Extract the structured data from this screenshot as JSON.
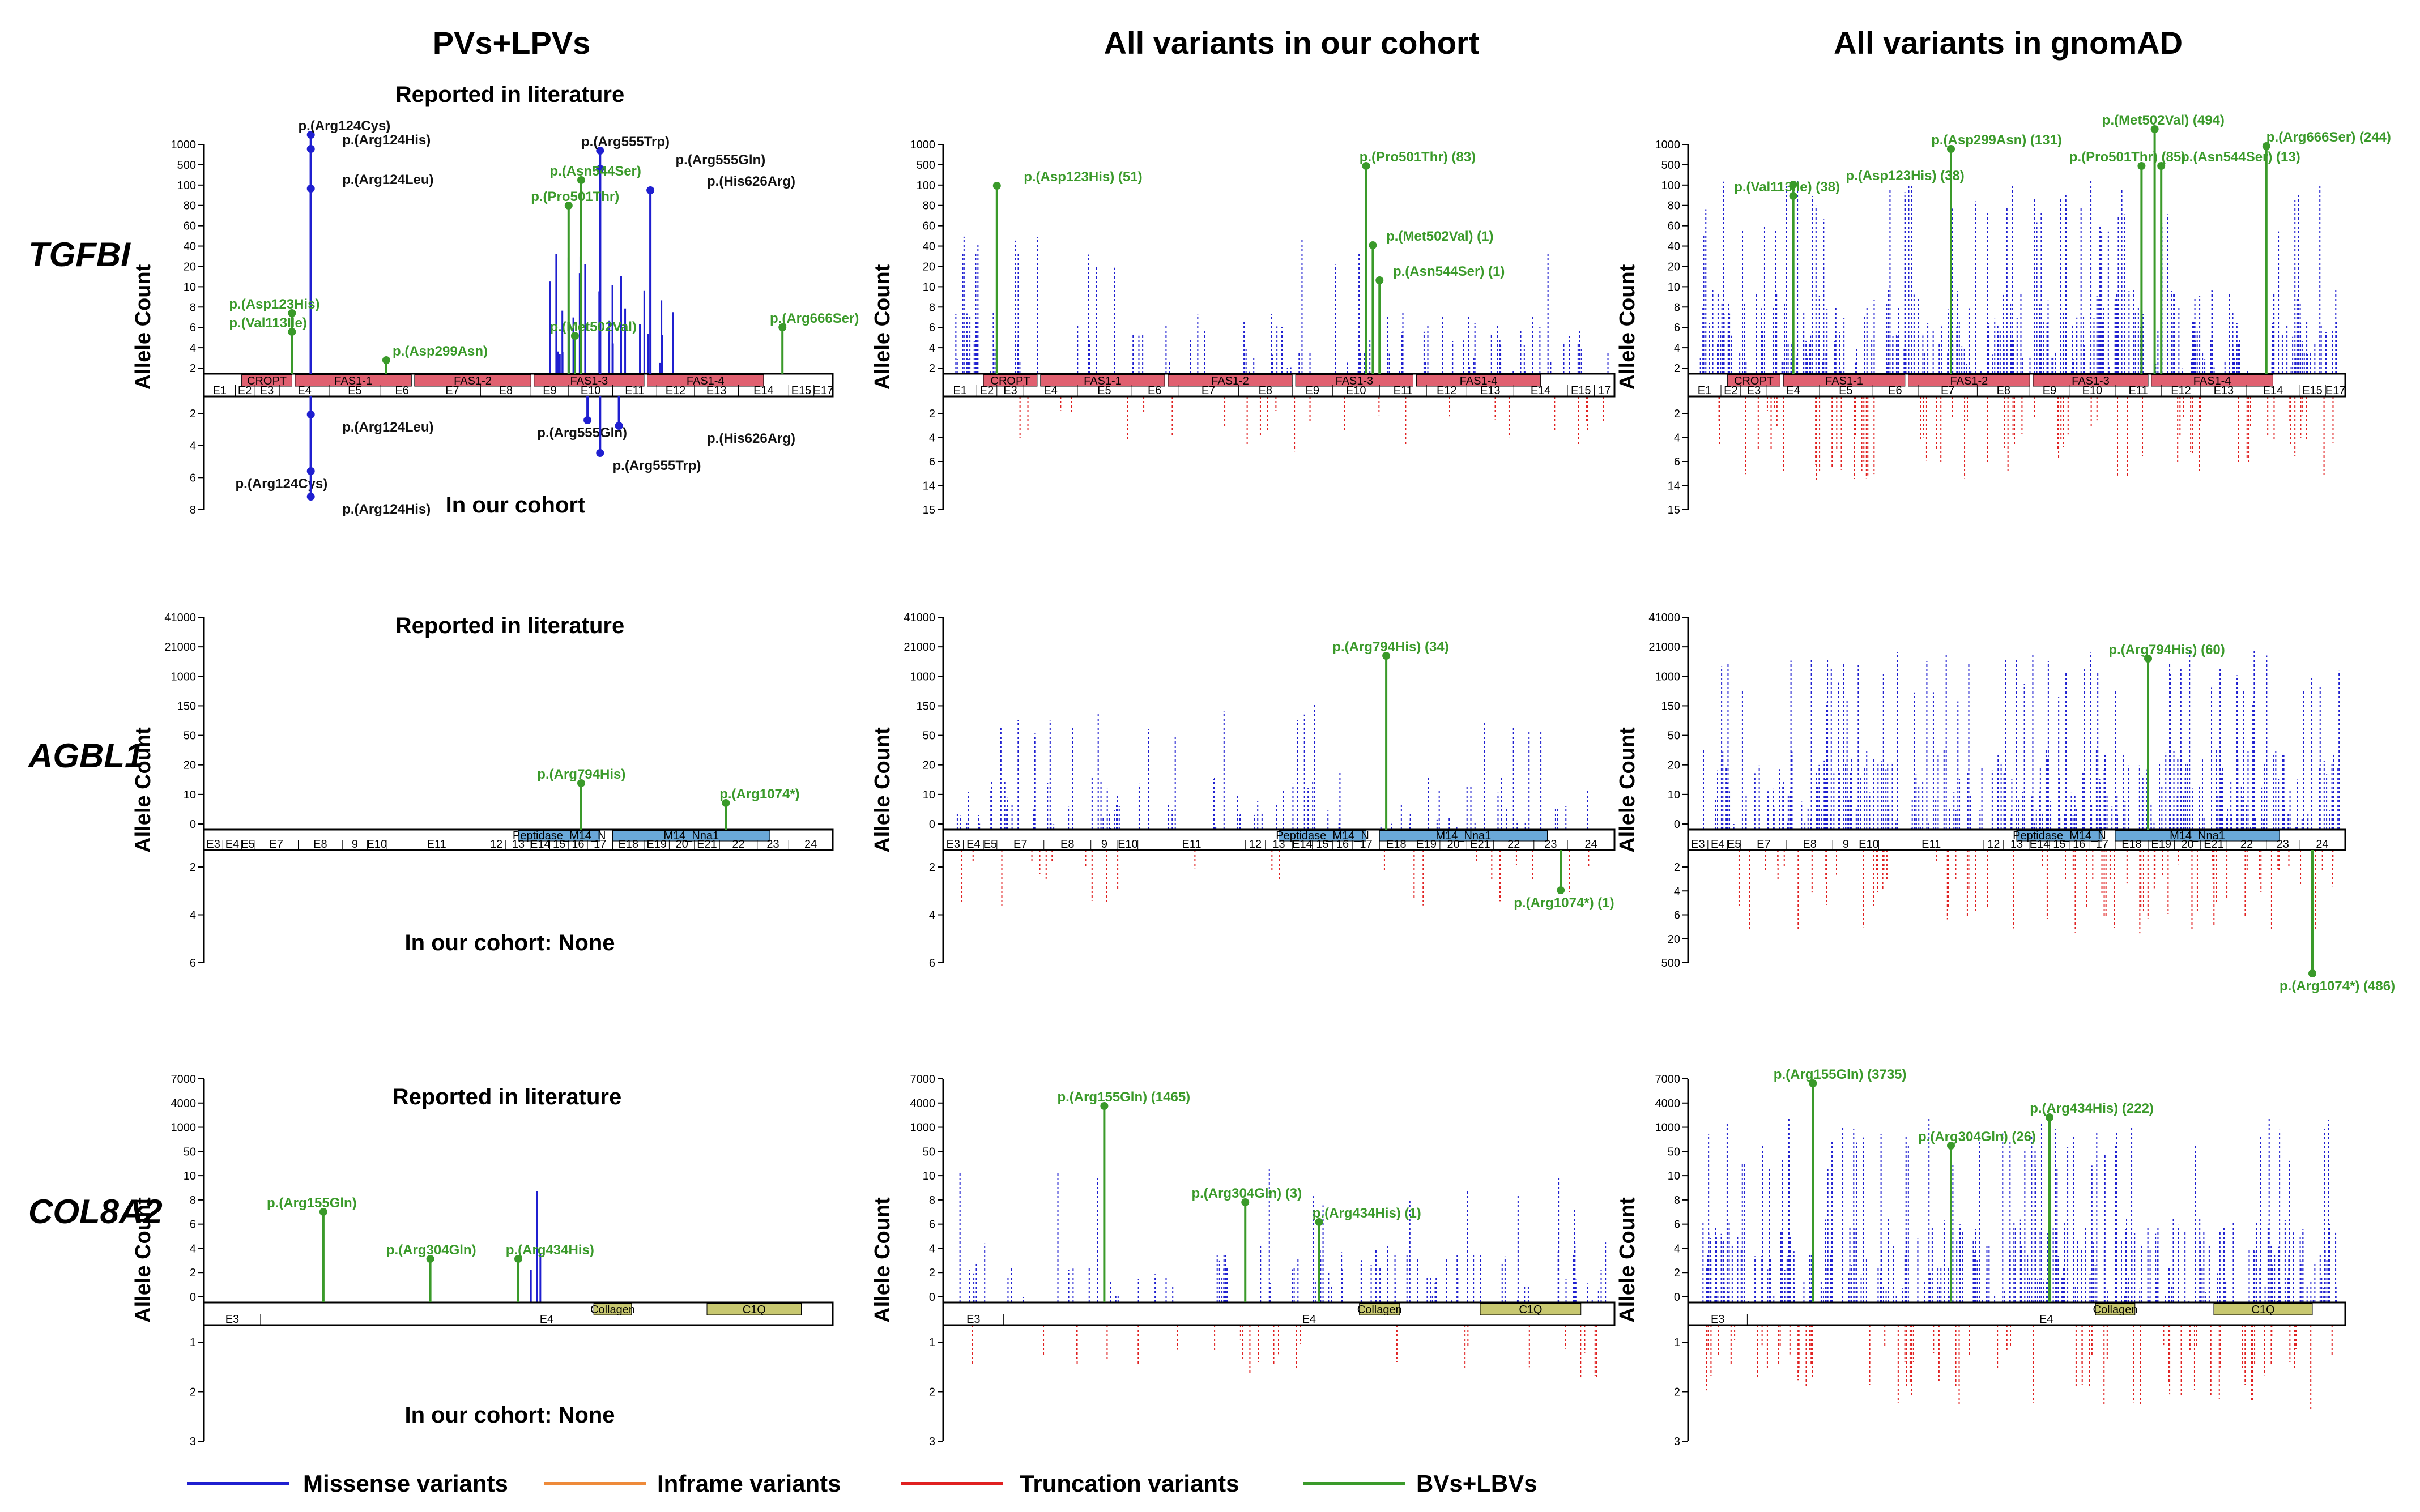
{
  "figure": {
    "column_titles": [
      "PVs+LPVs",
      "All variants in our cohort",
      "All variants in gnomAD"
    ],
    "y_axis_label": "Allele Count",
    "colors": {
      "missense": "#1f1fd0",
      "inframe": "#ee8a3a",
      "truncation": "#e02020",
      "benign": "#3a9a2a",
      "fas_domain": "#e06070",
      "peptidase_domain": "#6aa8d8",
      "collagen_domain": "#c8c870",
      "text_dark": "#111111"
    },
    "legend": [
      {
        "label": "Missense variants",
        "color": "#1f1fd0"
      },
      {
        "label": "Inframe variants",
        "color": "#ee8a3a"
      },
      {
        "label": "Truncation variants",
        "color": "#e02020"
      },
      {
        "label": "BVs+LBVs",
        "color": "#3a9a2a"
      }
    ]
  },
  "chart_data": [
    {
      "type": "lollipop",
      "gene": "TGFBI",
      "panel": "PVs+LPVs",
      "section_top": "Reported in literature",
      "section_bottom": "In our cohort",
      "yticks_top": [
        "1000",
        "500",
        "100",
        "80",
        "60",
        "40",
        "20",
        "10",
        "8",
        "6",
        "4",
        "2"
      ],
      "yticks_bottom": [
        "2",
        "4",
        "6",
        "8"
      ],
      "exons": [
        "E1",
        "E2",
        "E3",
        "E4",
        "E5",
        "E6",
        "E7",
        "E8",
        "E9",
        "E10",
        "E11",
        "E12",
        "E13",
        "E14",
        "E15",
        "E17"
      ],
      "domains": [
        "CROPT",
        "FAS1-1",
        "FAS1-2",
        "FAS1-3",
        "FAS1-4"
      ],
      "labels_top": [
        {
          "text": "p.(Arg124Cys)",
          "category": "pathogenic"
        },
        {
          "text": "p.(Arg124His)",
          "category": "pathogenic"
        },
        {
          "text": "p.(Arg124Leu)",
          "category": "pathogenic"
        },
        {
          "text": "p.(Asp123His)",
          "category": "benign"
        },
        {
          "text": "p.(Val113Ile)",
          "category": "benign"
        },
        {
          "text": "p.(Asp299Asn)",
          "category": "benign"
        },
        {
          "text": "p.(Arg555Trp)",
          "category": "pathogenic"
        },
        {
          "text": "p.(Arg555Gln)",
          "category": "pathogenic"
        },
        {
          "text": "p.(His626Arg)",
          "category": "pathogenic"
        },
        {
          "text": "p.(Asn544Ser)",
          "category": "benign"
        },
        {
          "text": "p.(Pro501Thr)",
          "category": "benign"
        },
        {
          "text": "p.(Met502Val)",
          "category": "benign"
        },
        {
          "text": "p.(Arg666Ser)",
          "category": "benign"
        }
      ],
      "labels_bottom": [
        {
          "text": "p.(Arg124Leu)",
          "category": "pathogenic"
        },
        {
          "text": "p.(Arg124Cys)",
          "category": "pathogenic"
        },
        {
          "text": "p.(Arg124His)",
          "category": "pathogenic"
        },
        {
          "text": "p.(Arg555Gln)",
          "category": "pathogenic"
        },
        {
          "text": "p.(Arg555Trp)",
          "category": "pathogenic"
        },
        {
          "text": "p.(His626Arg)",
          "category": "pathogenic"
        }
      ]
    },
    {
      "type": "lollipop",
      "gene": "TGFBI",
      "panel": "All variants in our cohort",
      "yticks_top": [
        "1000",
        "500",
        "100",
        "80",
        "60",
        "40",
        "20",
        "10",
        "8",
        "6",
        "4",
        "2"
      ],
      "yticks_bottom": [
        "2",
        "4",
        "6",
        "14",
        "15"
      ],
      "exons": [
        "E1",
        "E2",
        "E3",
        "E4",
        "E5",
        "E6",
        "E7",
        "E8",
        "E9",
        "E10",
        "E11",
        "E12",
        "E13",
        "E14",
        "E15",
        "17"
      ],
      "domains": [
        "CROPT",
        "FAS1-1",
        "FAS1-2",
        "FAS1-3",
        "FAS1-4"
      ],
      "labels_top": [
        {
          "text": "p.(Asp123His) (51)",
          "category": "benign"
        },
        {
          "text": "p.(Pro501Thr) (83)",
          "category": "benign"
        },
        {
          "text": "p.(Met502Val) (1)",
          "category": "benign"
        },
        {
          "text": "p.(Asn544Ser) (1)",
          "category": "benign"
        }
      ]
    },
    {
      "type": "lollipop",
      "gene": "TGFBI",
      "panel": "All variants in gnomAD",
      "yticks_top": [
        "1000",
        "500",
        "100",
        "80",
        "60",
        "40",
        "20",
        "10",
        "8",
        "6",
        "4",
        "2"
      ],
      "yticks_bottom": [
        "2",
        "4",
        "6",
        "14",
        "15"
      ],
      "exons": [
        "E1",
        "E2",
        "E3",
        "E4",
        "E5",
        "E6",
        "E7",
        "E8",
        "E9",
        "E10",
        "E11",
        "E12",
        "E13",
        "E14",
        "E15",
        "E17"
      ],
      "domains": [
        "CROPT",
        "FAS1-1",
        "FAS1-2",
        "FAS1-3",
        "FAS1-4"
      ],
      "labels_top": [
        {
          "text": "p.(Met502Val) (494)",
          "category": "benign"
        },
        {
          "text": "p.(Asp299Asn) (131)",
          "category": "benign"
        },
        {
          "text": "p.(Pro501Thr) (85)",
          "category": "benign"
        },
        {
          "text": "p.(Arg666Ser) (244)",
          "category": "benign"
        },
        {
          "text": "p.(Val113Ile) (38)",
          "category": "benign"
        },
        {
          "text": "p.(Asp123His) (38)",
          "category": "benign"
        },
        {
          "text": "p.(Asn544Ser) (13)",
          "category": "benign"
        }
      ]
    },
    {
      "type": "lollipop",
      "gene": "AGBL1",
      "panel": "PVs+LPVs",
      "section_top": "Reported in literature",
      "section_bottom": "In our cohort: None",
      "yticks_top": [
        "41000",
        "21000",
        "1000",
        "150",
        "50",
        "20",
        "10",
        "0"
      ],
      "yticks_bottom": [
        "2",
        "4",
        "6"
      ],
      "exons": [
        "E3",
        "E4",
        "E5",
        "E7",
        "E8",
        "9",
        "E10",
        "E11",
        "12",
        "13",
        "E14",
        "15",
        "16",
        "17",
        "E18",
        "E19",
        "20",
        "E21",
        "22",
        "23",
        "24"
      ],
      "domains": [
        "Peptidase_M14_N",
        "M14_Nna1"
      ],
      "labels_top": [
        {
          "text": "p.(Arg794His)",
          "category": "benign"
        },
        {
          "text": "p.(Arg1074*)",
          "category": "benign"
        }
      ]
    },
    {
      "type": "lollipop",
      "gene": "AGBL1",
      "panel": "All variants in our cohort",
      "yticks_top": [
        "41000",
        "21000",
        "1000",
        "150",
        "50",
        "20",
        "10",
        "0"
      ],
      "yticks_bottom": [
        "2",
        "4",
        "6"
      ],
      "exons": [
        "E3",
        "E4",
        "E5",
        "E7",
        "E8",
        "9",
        "E10",
        "E11",
        "12",
        "13",
        "E14",
        "15",
        "16",
        "17",
        "E18",
        "E19",
        "20",
        "E21",
        "22",
        "23",
        "24"
      ],
      "domains": [
        "Peptidase_M14_N",
        "M14_Nna1"
      ],
      "labels_top": [
        {
          "text": "p.(Arg794His) (34)",
          "category": "benign"
        }
      ],
      "labels_bottom": [
        {
          "text": "p.(Arg1074*) (1)",
          "category": "benign"
        }
      ]
    },
    {
      "type": "lollipop",
      "gene": "AGBL1",
      "panel": "All variants in gnomAD",
      "yticks_top": [
        "41000",
        "21000",
        "1000",
        "150",
        "50",
        "20",
        "10",
        "0"
      ],
      "yticks_bottom": [
        "2",
        "4",
        "6",
        "20",
        "500"
      ],
      "exons": [
        "E3",
        "E4",
        "E5",
        "E7",
        "E8",
        "9",
        "E10",
        "E11",
        "12",
        "13",
        "E14",
        "15",
        "16",
        "17",
        "E18",
        "E19",
        "20",
        "E21",
        "22",
        "23",
        "24"
      ],
      "domains": [
        "Peptidase_M14_N",
        "M14_Nna1"
      ],
      "labels_top": [
        {
          "text": "p.(Arg794His) (60)",
          "category": "benign"
        }
      ],
      "labels_bottom": [
        {
          "text": "p.(Arg1074*) (486)",
          "category": "benign"
        }
      ]
    },
    {
      "type": "lollipop",
      "gene": "COL8A2",
      "panel": "PVs+LPVs",
      "section_top": "Reported in literature",
      "section_bottom": "In our cohort: None",
      "yticks_top": [
        "7000",
        "4000",
        "1000",
        "50",
        "10",
        "8",
        "6",
        "4",
        "2",
        "0"
      ],
      "yticks_bottom": [
        "1",
        "2",
        "3"
      ],
      "exons": [
        "E3",
        "E4"
      ],
      "domains": [
        "Collagen",
        "C1Q"
      ],
      "labels_top": [
        {
          "text": "p.(Arg155Gln)",
          "category": "benign"
        },
        {
          "text": "p.(Arg304Gln)",
          "category": "benign"
        },
        {
          "text": "p.(Arg434His)",
          "category": "benign"
        }
      ]
    },
    {
      "type": "lollipop",
      "gene": "COL8A2",
      "panel": "All variants in our cohort",
      "yticks_top": [
        "7000",
        "4000",
        "1000",
        "50",
        "10",
        "8",
        "6",
        "4",
        "2",
        "0"
      ],
      "yticks_bottom": [
        "1",
        "2",
        "3"
      ],
      "exons": [
        "E3",
        "E4"
      ],
      "domains": [
        "Collagen",
        "C1Q"
      ],
      "labels_top": [
        {
          "text": "p.(Arg155Gln) (1465)",
          "category": "benign"
        },
        {
          "text": "p.(Arg304Gln) (3)",
          "category": "benign"
        },
        {
          "text": "p.(Arg434His) (1)",
          "category": "benign"
        }
      ]
    },
    {
      "type": "lollipop",
      "gene": "COL8A2",
      "panel": "All variants in gnomAD",
      "yticks_top": [
        "7000",
        "4000",
        "1000",
        "50",
        "10",
        "8",
        "6",
        "4",
        "2",
        "0"
      ],
      "yticks_bottom": [
        "1",
        "2",
        "3"
      ],
      "exons": [
        "E3",
        "E4"
      ],
      "domains": [
        "Collagen",
        "C1Q"
      ],
      "labels_top": [
        {
          "text": "p.(Arg155Gln) (3735)",
          "category": "benign"
        },
        {
          "text": "p.(Arg434His) (222)",
          "category": "benign"
        },
        {
          "text": "p.(Arg304Gln) (26)",
          "category": "benign"
        }
      ]
    }
  ]
}
